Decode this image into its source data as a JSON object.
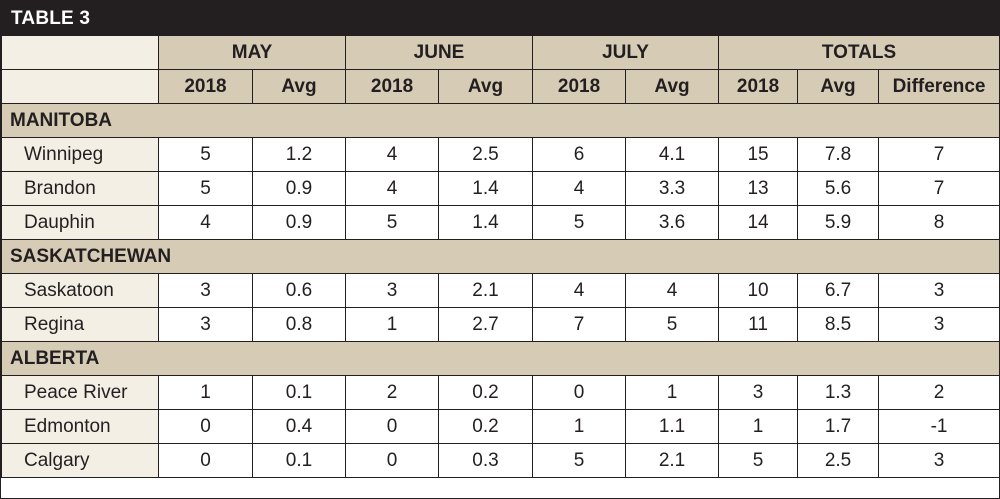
{
  "title": "TABLE 3",
  "month_headers": [
    "MAY",
    "JUNE",
    "JULY",
    "TOTALS"
  ],
  "sub_headers": [
    "2018",
    "Avg",
    "2018",
    "Avg",
    "2018",
    "Avg",
    "2018",
    "Avg",
    "Difference"
  ],
  "sections": [
    {
      "name": "MANITOBA",
      "rows": [
        {
          "city": "Winnipeg",
          "values": [
            "5",
            "1.2",
            "4",
            "2.5",
            "6",
            "4.1",
            "15",
            "7.8",
            "7"
          ]
        },
        {
          "city": "Brandon",
          "values": [
            "5",
            "0.9",
            "4",
            "1.4",
            "4",
            "3.3",
            "13",
            "5.6",
            "7"
          ]
        },
        {
          "city": "Dauphin",
          "values": [
            "4",
            "0.9",
            "5",
            "1.4",
            "5",
            "3.6",
            "14",
            "5.9",
            "8"
          ]
        }
      ]
    },
    {
      "name": "SASKATCHEWAN",
      "rows": [
        {
          "city": "Saskatoon",
          "values": [
            "3",
            "0.6",
            "3",
            "2.1",
            "4",
            "4",
            "10",
            "6.7",
            "3"
          ]
        },
        {
          "city": "Regina",
          "values": [
            "3",
            "0.8",
            "1",
            "2.7",
            "7",
            "5",
            "11",
            "8.5",
            "3"
          ]
        }
      ]
    },
    {
      "name": "ALBERTA",
      "rows": [
        {
          "city": "Peace River",
          "values": [
            "1",
            "0.1",
            "2",
            "0.2",
            "0",
            "1",
            "3",
            "1.3",
            "2"
          ]
        },
        {
          "city": "Edmonton",
          "values": [
            "0",
            "0.4",
            "0",
            "0.2",
            "1",
            "1.1",
            "1",
            "1.7",
            "-1"
          ]
        },
        {
          "city": "Calgary",
          "values": [
            "0",
            "0.1",
            "0",
            "0.3",
            "5",
            "2.1",
            "5",
            "2.5",
            "3"
          ]
        }
      ]
    }
  ],
  "colors": {
    "header_fill": "#d6ccb6",
    "label_fill": "#f4efe5",
    "title_bar": "#231f20",
    "rule": "#231f20"
  }
}
